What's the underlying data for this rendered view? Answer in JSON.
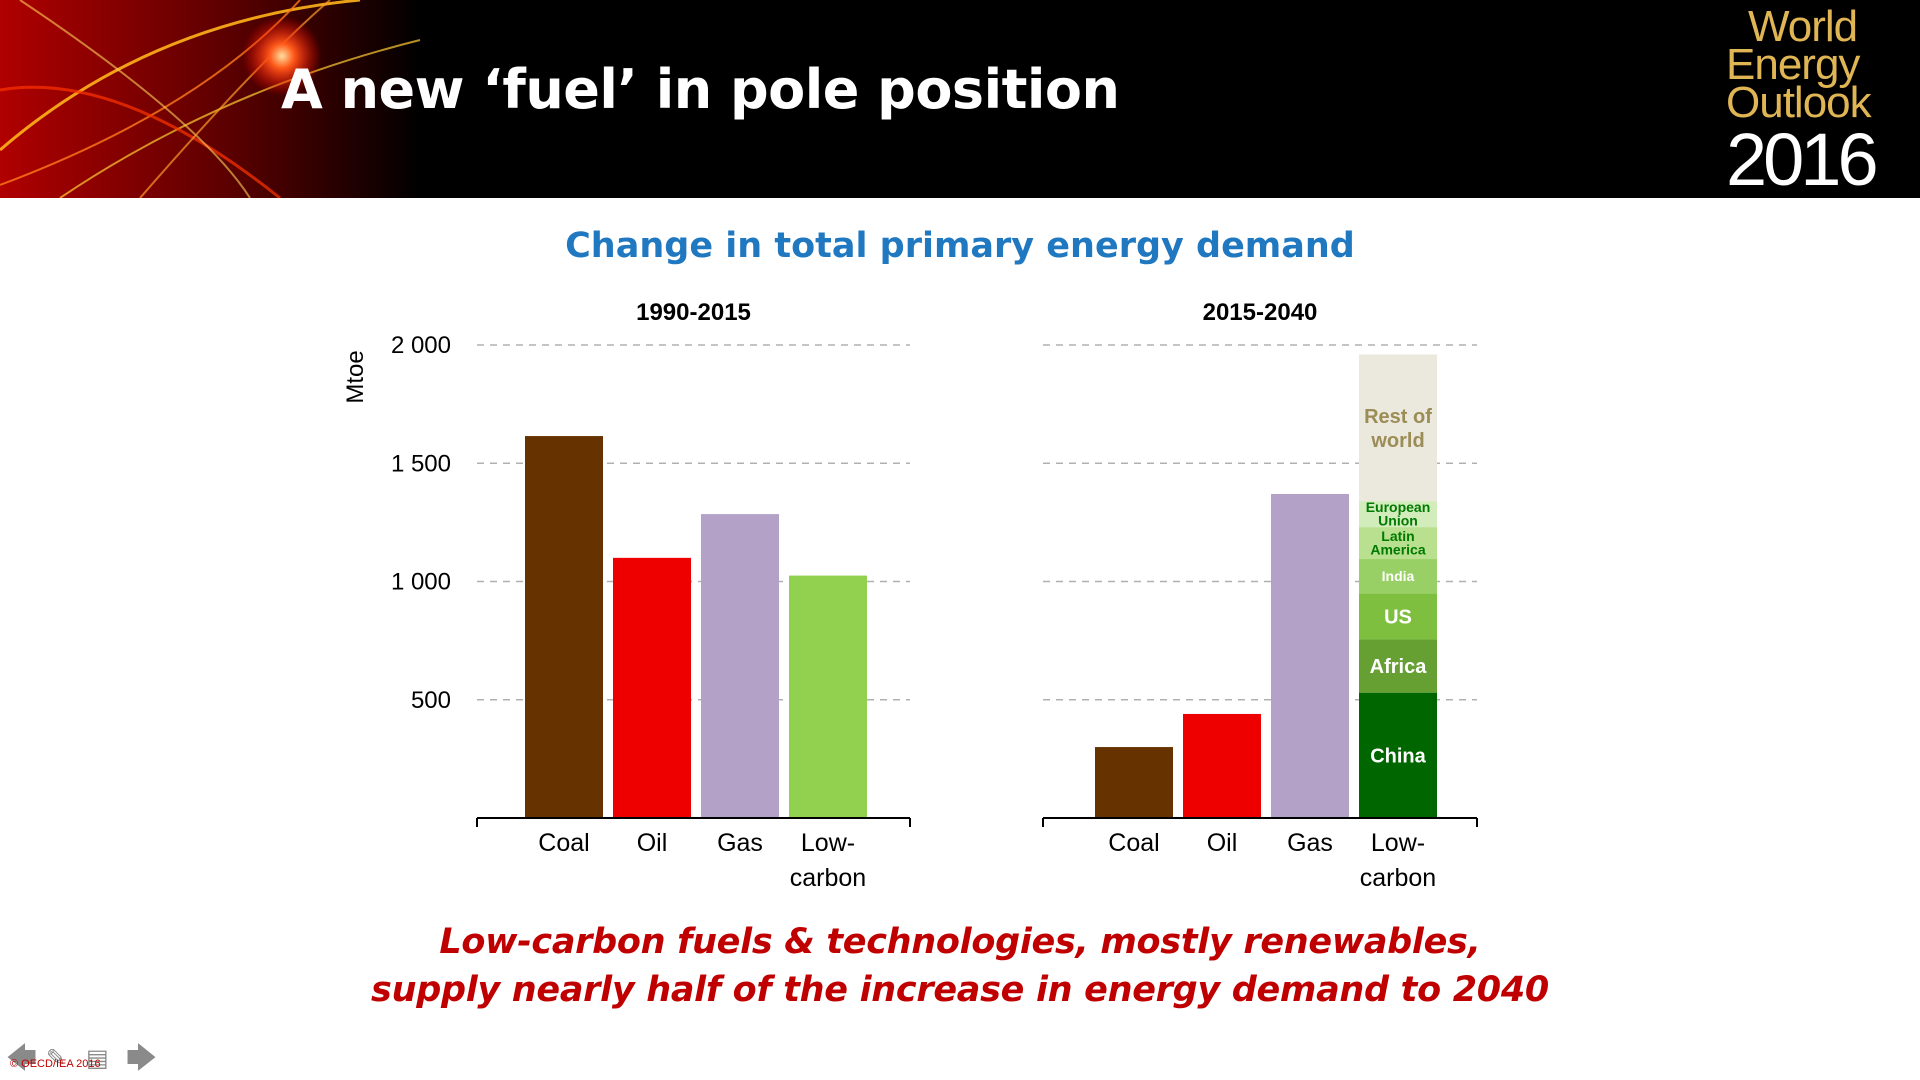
{
  "header": {
    "title": "A new ‘fuel’ in pole position",
    "logo": {
      "line1": "World",
      "line2": "Energy",
      "line3": "Outlook",
      "line4": "2016"
    }
  },
  "chart_title": "Change in total primary energy demand",
  "footer": {
    "caption_line1": "Low-carbon fuels & technologies, mostly renewables,",
    "caption_line2": "supply nearly half of the increase in energy demand to 2040",
    "copyright": "© OECD/IEA 2016"
  },
  "colors": {
    "Coal": "#663300",
    "Oil": "#ee0000",
    "Gas": "#b3a1c8",
    "Low-carbon": "#92d050",
    "China": "#006600",
    "Africa": "#66a033",
    "US": "#7fbf3f",
    "India": "#99d065",
    "Latin America": "#b8e08f",
    "European Union": "#d3ecbc",
    "Rest of world": "#ebe8dd"
  },
  "chart_data": [
    {
      "type": "bar",
      "title": "1990-2015",
      "ylabel": "Mtoe",
      "ylim": [
        0,
        2000
      ],
      "yticks": [
        500,
        1000,
        1500,
        2000
      ],
      "ytick_labels": [
        "500",
        "1 000",
        "1 500",
        "2 000"
      ],
      "grid": true,
      "categories": [
        "Coal",
        "Oil",
        "Gas",
        "Low-carbon"
      ],
      "category_labels": [
        [
          "Coal"
        ],
        [
          "Oil"
        ],
        [
          "Gas"
        ],
        [
          "Low-",
          "carbon"
        ]
      ],
      "values": [
        1615,
        1100,
        1285,
        1025
      ]
    },
    {
      "type": "bar",
      "title": "2015-2040",
      "ylim": [
        0,
        2000
      ],
      "grid": true,
      "categories": [
        "Coal",
        "Oil",
        "Gas",
        "Low-carbon"
      ],
      "category_labels": [
        [
          "Coal"
        ],
        [
          "Oil"
        ],
        [
          "Gas"
        ],
        [
          "Low-",
          "carbon"
        ]
      ],
      "values": [
        300,
        440,
        1370,
        1960
      ],
      "stacked_breakdown": {
        "category": "Low-carbon",
        "segments": [
          {
            "name": "China",
            "label_lines": [
              "China"
            ],
            "value": 530
          },
          {
            "name": "Africa",
            "label_lines": [
              "Africa"
            ],
            "value": 225
          },
          {
            "name": "US",
            "label_lines": [
              "US"
            ],
            "value": 195
          },
          {
            "name": "India",
            "label_lines": [
              "India"
            ],
            "value": 145
          },
          {
            "name": "Latin America",
            "label_lines": [
              "Latin",
              "America"
            ],
            "value": 135
          },
          {
            "name": "European Union",
            "label_lines": [
              "European",
              "Union"
            ],
            "value": 110
          },
          {
            "name": "Rest of world",
            "label_lines": [
              "Rest of",
              "world"
            ],
            "value": 620
          }
        ]
      }
    }
  ]
}
